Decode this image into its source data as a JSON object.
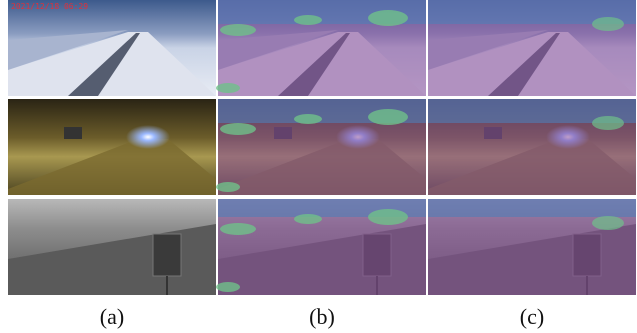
{
  "figure": {
    "timestamp": "2021/12/18 06:29",
    "captions": [
      "(a)",
      "(b)",
      "(c)"
    ]
  }
}
